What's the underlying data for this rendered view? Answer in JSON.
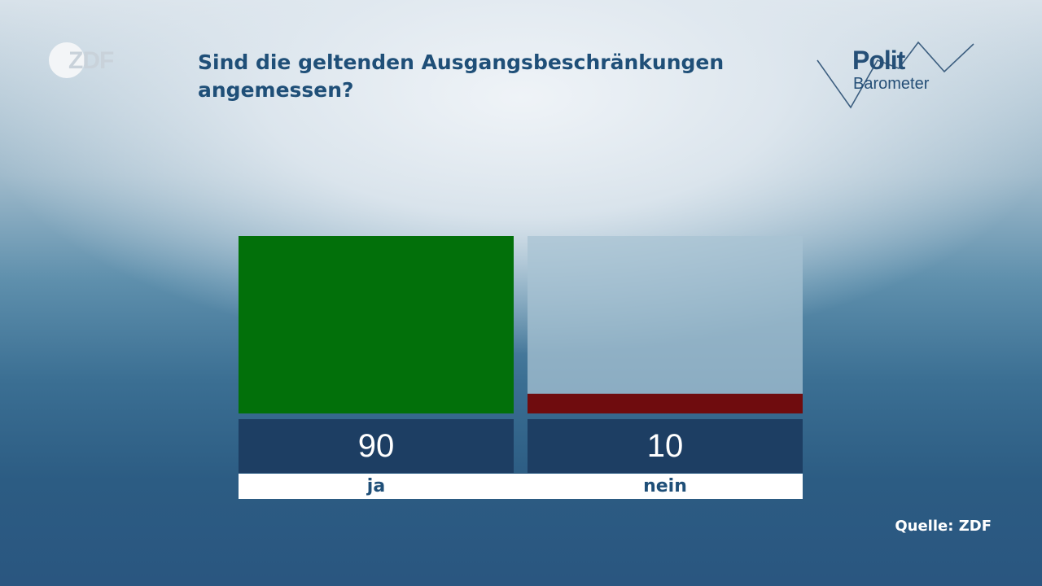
{
  "brand": {
    "zdf_logo": "ZDF",
    "politbarometer": {
      "line1": "Polit",
      "line2": "Barometer"
    }
  },
  "title": "Sind die geltenden Ausgangsbeschränkungen angemessen?",
  "source": "Quelle: ZDF",
  "colors": {
    "ja": "#02700a",
    "nein": "#6f0c0e",
    "track": "#a8c3d3",
    "value_box": "#1d3e63"
  },
  "chart_data": {
    "type": "bar",
    "title": "Sind die geltenden Ausgangsbeschränkungen angemessen?",
    "categories": [
      "ja",
      "nein"
    ],
    "values": [
      90,
      10
    ],
    "value_labels": [
      "90",
      "10"
    ],
    "ylim": [
      0,
      90
    ],
    "xlabel": "",
    "ylabel": "",
    "grid": false
  }
}
